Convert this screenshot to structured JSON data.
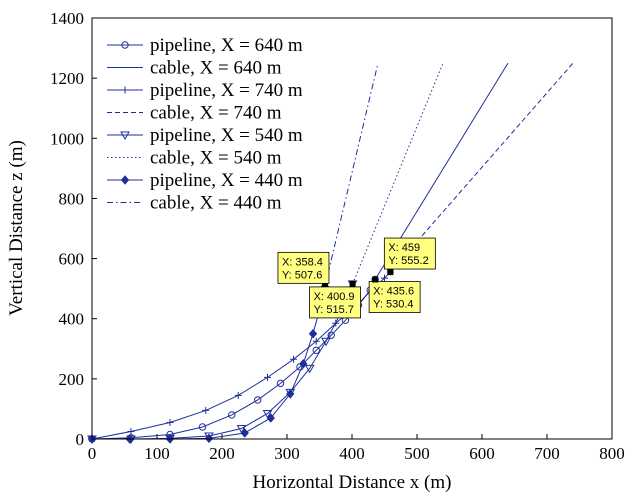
{
  "colors": {
    "series": "#1f2f9a",
    "tooltip_fill": "#ffff80",
    "tooltip_border": "#000000",
    "axis": "#000000"
  },
  "chart_data": {
    "type": "line",
    "xlabel": "Horizontal Distance x (m)",
    "ylabel": "Vertical Distance z (m)",
    "xlim": [
      0,
      800
    ],
    "ylim": [
      0,
      1400
    ],
    "xticks": [
      0,
      100,
      200,
      300,
      400,
      500,
      600,
      700,
      800
    ],
    "yticks": [
      0,
      200,
      400,
      600,
      800,
      1000,
      1200,
      1400
    ],
    "grid": false,
    "legend_position": "top-left",
    "series": [
      {
        "name": "pipeline, X = 640 m",
        "style": "solid",
        "marker": "circle",
        "x": [
          0,
          60,
          120,
          170,
          215,
          255,
          290,
          320,
          345,
          368,
          390,
          410,
          428,
          435.6
        ],
        "y": [
          0,
          4,
          15,
          40,
          80,
          130,
          185,
          240,
          295,
          345,
          395,
          445,
          495,
          530.4
        ]
      },
      {
        "name": "cable, X = 640 m",
        "style": "solid",
        "marker": "none",
        "x": [
          435.6,
          640
        ],
        "y": [
          530.4,
          1250
        ]
      },
      {
        "name": "pipeline, X = 740 m",
        "style": "solid",
        "marker": "plus",
        "x": [
          0,
          60,
          120,
          175,
          225,
          270,
          310,
          345,
          375,
          405,
          430,
          450,
          459
        ],
        "y": [
          0,
          25,
          55,
          95,
          145,
          205,
          265,
          325,
          385,
          440,
          495,
          535,
          555.2
        ]
      },
      {
        "name": "cable, X = 740 m",
        "style": "dashed",
        "marker": "none",
        "x": [
          459,
          740
        ],
        "y": [
          555.2,
          1250
        ]
      },
      {
        "name": "pipeline, X = 540 m",
        "style": "solid",
        "marker": "triangle-down",
        "x": [
          0,
          60,
          120,
          180,
          230,
          270,
          305,
          335,
          360,
          383,
          400.9
        ],
        "y": [
          0,
          0,
          2,
          10,
          35,
          85,
          155,
          235,
          325,
          420,
          515.7
        ]
      },
      {
        "name": "cable, X = 540 m",
        "style": "dotted",
        "marker": "none",
        "x": [
          400.9,
          540
        ],
        "y": [
          515.7,
          1250
        ]
      },
      {
        "name": "pipeline, X = 440 m",
        "style": "solid",
        "marker": "diamond",
        "x": [
          0,
          58,
          120,
          180,
          235,
          275,
          305,
          325,
          340,
          350,
          358.4
        ],
        "y": [
          0,
          0,
          0,
          2,
          20,
          70,
          150,
          250,
          350,
          430,
          507.6
        ]
      },
      {
        "name": "cable, X = 440 m",
        "style": "dashdot",
        "marker": "none",
        "x": [
          358.4,
          440
        ],
        "y": [
          507.6,
          1250
        ]
      }
    ],
    "datatips": [
      {
        "x": 358.4,
        "y": 507.6,
        "line1": "X: 358.4",
        "line2": "Y: 507.6",
        "placement": "upper-left"
      },
      {
        "x": 400.9,
        "y": 515.7,
        "line1": "X: 400.9",
        "line2": "Y: 515.7",
        "placement": "lower-left"
      },
      {
        "x": 435.6,
        "y": 530.4,
        "line1": "X: 435.6",
        "line2": "Y: 530.4",
        "placement": "lower-right"
      },
      {
        "x": 459,
        "y": 555.2,
        "line1": "X: 459",
        "line2": "Y: 555.2",
        "placement": "upper-right"
      }
    ]
  }
}
